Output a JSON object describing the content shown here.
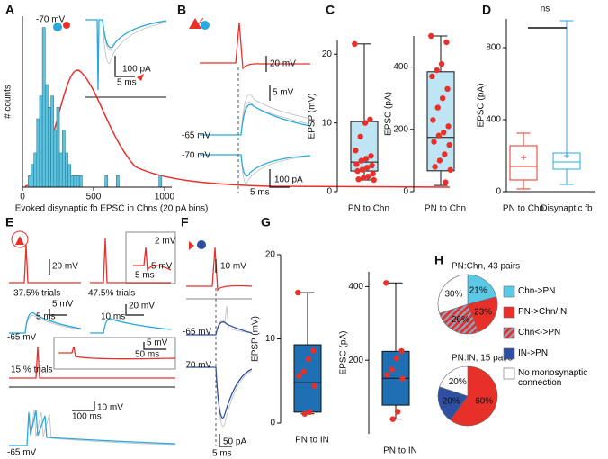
{
  "panel_letters": [
    "A",
    "B",
    "C",
    "D",
    "E",
    "F",
    "G",
    "H"
  ],
  "chart_data": [
    {
      "type": "histogram",
      "xlabel": "Evoked disynaptic fb EPSC in Chns (20 pA bins)",
      "ylabel": "# counts",
      "bins": [
        40,
        60,
        80,
        100,
        120,
        140,
        160,
        180,
        200,
        220,
        240,
        260,
        280,
        300,
        320,
        340,
        360,
        380,
        400,
        420,
        440,
        460,
        480,
        500,
        520,
        540,
        560,
        580,
        600,
        620,
        640,
        660,
        680,
        700,
        720,
        740,
        760,
        780,
        800,
        820,
        840,
        860,
        880,
        900,
        920,
        940,
        960,
        980,
        1000
      ],
      "counts": [
        1,
        2,
        3,
        6,
        8,
        14,
        9,
        7,
        8,
        5,
        7,
        3,
        5,
        3,
        2,
        1,
        1,
        1,
        1,
        0,
        0,
        0,
        0,
        0,
        0,
        0,
        0,
        1,
        0,
        0,
        0,
        1,
        0,
        0,
        0,
        0,
        0,
        0,
        0,
        0,
        0,
        0,
        0,
        0,
        0,
        0,
        1,
        0
      ],
      "color": "#5bc3df",
      "edge_color": "#2a7f97",
      "xlim": [
        0,
        1000
      ],
      "xticks": [
        0,
        500,
        1000
      ],
      "ylim": [
        0,
        15
      ],
      "yticks": [
        0,
        5,
        10,
        15
      ]
    },
    {
      "type": "box",
      "ylabel": "EPSP (mV)",
      "categories": [
        "PN to Chn"
      ],
      "ylim": [
        0,
        22
      ],
      "yticks": [
        0,
        10,
        20
      ],
      "point_color": "#e8302a",
      "boxes": [
        {
          "color": "#111111",
          "fill": "#bfe5f4",
          "low": 1.7,
          "q1": 3,
          "median": 4.3,
          "q3": 10.2,
          "high": 21.5,
          "points": [
            21.5,
            10.5,
            10,
            8,
            6,
            5.2,
            4.8,
            4.5,
            4,
            3.8,
            3.5,
            3.2,
            3,
            2.6,
            2.2,
            2,
            1.8,
            1.7
          ]
        }
      ]
    },
    {
      "type": "box",
      "ylabel": "EPSC (pA)",
      "categories": [
        "PN to Chn"
      ],
      "ylim": [
        0,
        500
      ],
      "yticks": [
        0,
        200,
        400
      ],
      "point_color": "#e8302a",
      "boxes": [
        {
          "color": "#111111",
          "fill": "#bfe5f4",
          "low": 20,
          "q1": 67,
          "median": 174,
          "q3": 385,
          "high": 500,
          "points": [
            500,
            480,
            410,
            390,
            370,
            330,
            300,
            270,
            230,
            210,
            190,
            180,
            160,
            150,
            120,
            100,
            80,
            70,
            30
          ]
        }
      ]
    },
    {
      "type": "box",
      "title": "ns",
      "ylabel": "EPSC (pA)",
      "categories": [
        "PN to Chn",
        "Disynaptic fb"
      ],
      "ylim": [
        0,
        960
      ],
      "yticks": [
        0,
        400,
        800
      ],
      "boxes": [
        {
          "color": "#e8302a",
          "low": 15,
          "q1": 65,
          "median": 140,
          "q3": 255,
          "high": 325,
          "mean": 190
        },
        {
          "color": "#2aa9df",
          "low": 40,
          "q1": 125,
          "median": 165,
          "q3": 215,
          "high": 950,
          "mean": 200
        }
      ]
    },
    {
      "type": "box",
      "ylabel": "EPSP (mV)",
      "categories": [
        "PN to IN"
      ],
      "ylim": [
        0,
        20
      ],
      "yticks": [
        0,
        10,
        20
      ],
      "point_color": "#e8302a",
      "boxes": [
        {
          "color": "#111111",
          "fill": "#1f6fb5",
          "low": 1.1,
          "q1": 1.3,
          "median": 4.8,
          "q3": 9.3,
          "high": 15.5,
          "points": [
            15.5,
            8.6,
            7.6,
            6.1,
            5.6,
            4.4,
            1.3,
            1.1
          ]
        }
      ]
    },
    {
      "type": "box",
      "ylabel": "EPSC (pA)",
      "categories": [
        "PN to IN"
      ],
      "ylim": [
        0,
        440
      ],
      "yticks": [
        200,
        400
      ],
      "point_color": "#e8302a",
      "boxes": [
        {
          "color": "#111111",
          "fill": "#1f6fb5",
          "low": 40,
          "q1": 78,
          "median": 151,
          "q3": 224,
          "high": 410,
          "points": [
            410,
            225,
            205,
            175,
            160,
            150,
            60,
            40
          ]
        }
      ]
    },
    {
      "type": "pie",
      "title": "PN:Chn, 43 pairs",
      "values": [
        21,
        23,
        26,
        30
      ],
      "value_labels": [
        "21%",
        "23%",
        "26%",
        "30%"
      ],
      "colors": [
        "#5bc8e6",
        "#e8302a",
        "hatch",
        "#ffffff"
      ]
    },
    {
      "type": "pie",
      "title": "PN:IN, 15 pairs",
      "values": [
        60,
        20,
        20
      ],
      "value_labels": [
        "60%",
        "20%",
        "20%"
      ],
      "colors": [
        "#e8302a",
        "#2f4fa3",
        "#ffffff"
      ]
    }
  ],
  "legend": [
    {
      "name": "Chn->PN",
      "color": "#5bc8e6"
    },
    {
      "name": "PN->Chn/IN",
      "color": "#e8302a"
    },
    {
      "name": "Chn<->PN",
      "color": "hatch"
    },
    {
      "name": "IN->PN",
      "color": "#2f4fa3"
    },
    {
      "name": "No monosynaptic connection",
      "color": "#ffffff"
    }
  ],
  "annotations": {
    "a": [
      "-70 mV",
      "100 pA",
      "5 ms"
    ],
    "b": [
      "20 mV",
      "5 mV",
      "-65 mV",
      "-70 mV",
      "100 pA",
      "5 ms"
    ],
    "e": [
      "20 mV",
      "37.5% trials",
      "5 mV",
      "5 ms",
      "-65 mV",
      "47.5% trials",
      "2 mV",
      "5 mV",
      "5 ms",
      "20 mV",
      "10 ms",
      "5 mV",
      "50 ms",
      "15 % trials",
      "10 mV",
      "100 ms",
      "-65 mV"
    ],
    "f": [
      "10 mV",
      "-65 mV",
      "-70 mV",
      "50 pA",
      "5 ms"
    ]
  }
}
